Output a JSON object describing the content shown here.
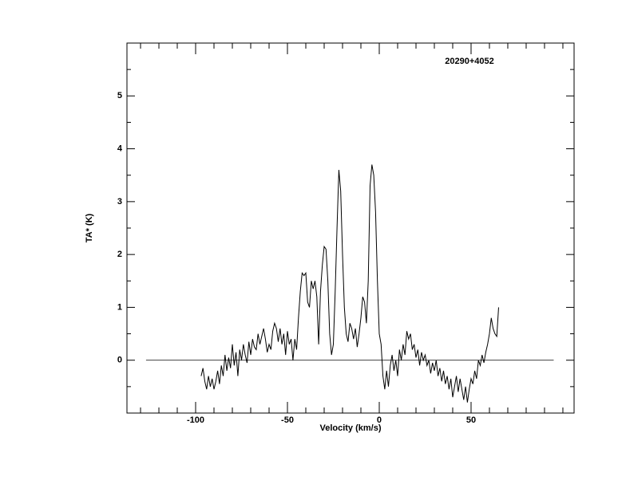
{
  "chart_data": {
    "type": "line",
    "title": "20290+4052",
    "xlabel": "Velocity (km/s)",
    "ylabel": "TA* (K)",
    "xlim": [
      -137.4,
      106.1
    ],
    "ylim": [
      -1,
      6
    ],
    "xticks": [
      -100,
      -50,
      0,
      50
    ],
    "yticks": [
      0,
      1,
      2,
      3,
      4,
      5
    ],
    "xminorticks": [
      -130,
      -120,
      -110,
      -90,
      -80,
      -70,
      -60,
      -40,
      -30,
      -20,
      -10,
      10,
      20,
      30,
      40,
      60,
      70,
      80,
      90,
      100
    ],
    "yminorticks": [
      -0.5,
      0.5,
      1.5,
      2.5,
      3.5,
      4.5,
      5.5
    ],
    "baseline": {
      "x": [
        -127,
        95
      ],
      "y": 0
    },
    "color": "#000000",
    "x": [
      -97,
      -96,
      -95,
      -94,
      -93,
      -92,
      -91,
      -90,
      -89,
      -88,
      -87,
      -86,
      -85,
      -84,
      -83,
      -82,
      -81,
      -80,
      -79,
      -78,
      -77,
      -76,
      -75,
      -74,
      -73,
      -72,
      -71,
      -70,
      -69,
      -68,
      -67,
      -66,
      -65,
      -64,
      -63,
      -62,
      -61,
      -60,
      -59,
      -58,
      -57,
      -56,
      -55,
      -54,
      -53,
      -52,
      -51,
      -50,
      -49,
      -48,
      -47,
      -46,
      -45,
      -44,
      -43,
      -42,
      -41,
      -40,
      -39,
      -38,
      -37,
      -36,
      -35,
      -34,
      -33,
      -32,
      -31,
      -30,
      -29,
      -28,
      -27,
      -26,
      -25,
      -24,
      -23,
      -22,
      -21,
      -20,
      -19,
      -18,
      -17,
      -16,
      -15,
      -14,
      -13,
      -12,
      -11,
      -10,
      -9,
      -8,
      -7,
      -6,
      -5,
      -4,
      -3,
      -2,
      -1,
      0,
      1,
      2,
      3,
      4,
      5,
      6,
      7,
      8,
      9,
      10,
      11,
      12,
      13,
      14,
      15,
      16,
      17,
      18,
      19,
      20,
      21,
      22,
      23,
      24,
      25,
      26,
      27,
      28,
      29,
      30,
      31,
      32,
      33,
      34,
      35,
      36,
      37,
      38,
      39,
      40,
      41,
      42,
      43,
      44,
      45,
      46,
      47,
      48,
      49,
      50,
      51,
      52,
      53,
      54,
      55,
      56,
      57,
      58,
      59,
      60,
      61,
      62,
      63,
      64,
      65
    ],
    "values": [
      -0.3,
      -0.15,
      -0.4,
      -0.55,
      -0.3,
      -0.5,
      -0.35,
      -0.55,
      -0.4,
      -0.2,
      -0.45,
      -0.1,
      -0.3,
      0.1,
      -0.2,
      0.05,
      -0.15,
      0.3,
      -0.1,
      0.15,
      -0.3,
      0.2,
      0.0,
      0.3,
      0.1,
      -0.05,
      0.35,
      0.1,
      0.4,
      0.25,
      0.2,
      0.5,
      0.3,
      0.45,
      0.6,
      0.4,
      0.15,
      0.3,
      0.2,
      0.55,
      0.7,
      0.6,
      0.35,
      0.6,
      0.3,
      0.5,
      0.1,
      0.55,
      0.3,
      0.4,
      0.0,
      0.4,
      0.2,
      0.8,
      1.3,
      1.65,
      1.6,
      1.65,
      1.1,
      1.0,
      1.5,
      1.35,
      1.5,
      1.2,
      0.3,
      1.3,
      1.8,
      2.15,
      2.1,
      1.5,
      0.5,
      0.1,
      0.3,
      1.3,
      2.5,
      3.6,
      3.2,
      2.0,
      1.0,
      0.5,
      0.35,
      0.7,
      0.6,
      0.4,
      0.6,
      0.25,
      0.5,
      0.8,
      1.2,
      1.1,
      0.7,
      1.5,
      3.3,
      3.7,
      3.5,
      2.8,
      1.5,
      0.5,
      0.3,
      -0.3,
      -0.55,
      -0.2,
      -0.5,
      -0.1,
      0.1,
      -0.2,
      0.0,
      -0.3,
      0.2,
      0.0,
      0.3,
      0.1,
      0.55,
      0.4,
      0.5,
      0.2,
      0.3,
      0.05,
      0.2,
      -0.1,
      0.15,
      0.0,
      0.1,
      -0.1,
      0.0,
      -0.25,
      -0.05,
      -0.2,
      0.0,
      -0.3,
      -0.15,
      -0.4,
      -0.2,
      -0.45,
      -0.3,
      -0.55,
      -0.35,
      -0.7,
      -0.5,
      -0.3,
      -0.6,
      -0.35,
      -0.55,
      -0.75,
      -0.5,
      -0.8,
      -0.55,
      -0.35,
      -0.45,
      -0.2,
      -0.35,
      0.0,
      -0.1,
      0.1,
      -0.05,
      0.15,
      0.3,
      0.5,
      0.8,
      0.6,
      0.5,
      0.45,
      1.0
    ]
  }
}
